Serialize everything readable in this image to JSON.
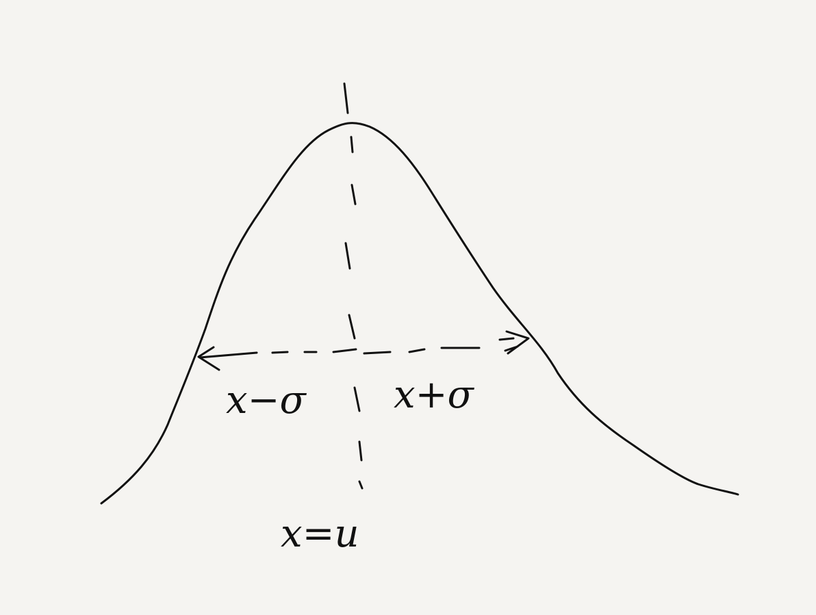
{
  "labels": {
    "left_bound": "x−σ",
    "right_bound": "x+σ",
    "mean": "x=u"
  },
  "colors": {
    "background": "#f5f4f1",
    "ink": "#111111"
  }
}
